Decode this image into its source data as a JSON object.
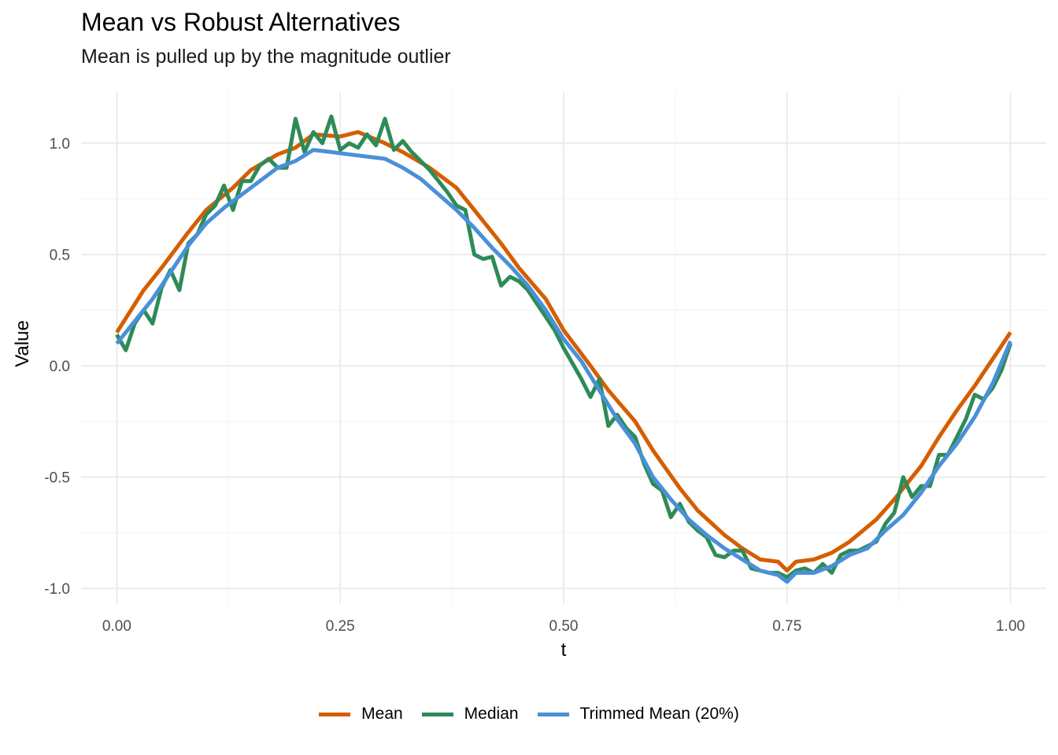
{
  "colors": {
    "mean": "#D55E00",
    "median": "#2E8B57",
    "trimmed": "#4A90D9",
    "grid_major": "#EBEBEB",
    "grid_minor": "#F5F5F5"
  },
  "chart_data": {
    "type": "line",
    "title": "Mean vs Robust Alternatives",
    "subtitle": "Mean is pulled up by the magnitude outlier",
    "xlabel": "t",
    "ylabel": "Value",
    "xlim": [
      -0.04,
      1.04
    ],
    "ylim": [
      -1.07,
      1.23
    ],
    "x_ticks": [
      0.0,
      0.25,
      0.5,
      0.75,
      1.0
    ],
    "x_tick_labels": [
      "0.00",
      "0.25",
      "0.50",
      "0.75",
      "1.00"
    ],
    "y_ticks": [
      -1.0,
      -0.5,
      0.0,
      0.5,
      1.0
    ],
    "y_tick_labels": [
      "-1.0",
      "-0.5",
      "0.0",
      "0.5",
      "1.0"
    ],
    "grid": true,
    "legend_position": "bottom",
    "series": [
      {
        "name": "Mean",
        "color_key": "mean",
        "x": [
          0.0,
          0.03,
          0.05,
          0.08,
          0.1,
          0.13,
          0.15,
          0.18,
          0.2,
          0.22,
          0.25,
          0.27,
          0.3,
          0.32,
          0.35,
          0.38,
          0.4,
          0.43,
          0.45,
          0.48,
          0.5,
          0.53,
          0.55,
          0.58,
          0.6,
          0.63,
          0.65,
          0.68,
          0.7,
          0.72,
          0.74,
          0.75,
          0.76,
          0.78,
          0.8,
          0.82,
          0.85,
          0.87,
          0.9,
          0.92,
          0.94,
          0.96,
          0.98,
          1.0
        ],
        "values": [
          0.15,
          0.34,
          0.44,
          0.6,
          0.7,
          0.8,
          0.88,
          0.95,
          0.98,
          1.04,
          1.03,
          1.05,
          1.0,
          0.96,
          0.89,
          0.8,
          0.7,
          0.55,
          0.44,
          0.3,
          0.16,
          0.0,
          -0.11,
          -0.25,
          -0.38,
          -0.55,
          -0.65,
          -0.76,
          -0.82,
          -0.87,
          -0.88,
          -0.92,
          -0.88,
          -0.87,
          -0.84,
          -0.79,
          -0.69,
          -0.6,
          -0.45,
          -0.32,
          -0.2,
          -0.09,
          0.03,
          0.15
        ]
      },
      {
        "name": "Median",
        "color_key": "median",
        "x": [
          0.0,
          0.01,
          0.02,
          0.03,
          0.04,
          0.05,
          0.06,
          0.07,
          0.08,
          0.09,
          0.1,
          0.11,
          0.12,
          0.13,
          0.14,
          0.15,
          0.16,
          0.17,
          0.18,
          0.19,
          0.2,
          0.21,
          0.22,
          0.23,
          0.24,
          0.25,
          0.26,
          0.27,
          0.28,
          0.29,
          0.3,
          0.31,
          0.32,
          0.33,
          0.34,
          0.35,
          0.36,
          0.37,
          0.38,
          0.39,
          0.4,
          0.41,
          0.42,
          0.43,
          0.44,
          0.45,
          0.46,
          0.47,
          0.48,
          0.49,
          0.5,
          0.51,
          0.52,
          0.53,
          0.54,
          0.55,
          0.56,
          0.57,
          0.58,
          0.59,
          0.6,
          0.61,
          0.62,
          0.63,
          0.64,
          0.65,
          0.66,
          0.67,
          0.68,
          0.69,
          0.7,
          0.71,
          0.72,
          0.73,
          0.74,
          0.75,
          0.76,
          0.77,
          0.78,
          0.79,
          0.8,
          0.81,
          0.82,
          0.83,
          0.84,
          0.85,
          0.86,
          0.87,
          0.88,
          0.89,
          0.9,
          0.91,
          0.92,
          0.93,
          0.94,
          0.95,
          0.96,
          0.97,
          0.98,
          0.99,
          1.0
        ],
        "values": [
          0.14,
          0.07,
          0.19,
          0.25,
          0.19,
          0.35,
          0.43,
          0.34,
          0.55,
          0.59,
          0.68,
          0.72,
          0.81,
          0.7,
          0.83,
          0.83,
          0.9,
          0.93,
          0.89,
          0.89,
          1.11,
          0.96,
          1.05,
          1.0,
          1.12,
          0.97,
          1.0,
          0.98,
          1.04,
          0.99,
          1.11,
          0.97,
          1.01,
          0.96,
          0.92,
          0.88,
          0.83,
          0.78,
          0.72,
          0.7,
          0.5,
          0.48,
          0.49,
          0.36,
          0.4,
          0.38,
          0.34,
          0.28,
          0.22,
          0.16,
          0.08,
          0.01,
          -0.06,
          -0.14,
          -0.06,
          -0.27,
          -0.22,
          -0.28,
          -0.32,
          -0.44,
          -0.53,
          -0.56,
          -0.68,
          -0.62,
          -0.7,
          -0.74,
          -0.77,
          -0.85,
          -0.86,
          -0.83,
          -0.83,
          -0.91,
          -0.92,
          -0.93,
          -0.93,
          -0.95,
          -0.92,
          -0.91,
          -0.93,
          -0.89,
          -0.93,
          -0.85,
          -0.83,
          -0.83,
          -0.81,
          -0.79,
          -0.71,
          -0.66,
          -0.5,
          -0.59,
          -0.54,
          -0.54,
          -0.4,
          -0.4,
          -0.32,
          -0.24,
          -0.13,
          -0.15,
          -0.1,
          -0.02,
          0.1
        ]
      },
      {
        "name": "Trimmed Mean (20%)",
        "color_key": "trimmed",
        "x": [
          0.0,
          0.02,
          0.04,
          0.06,
          0.08,
          0.1,
          0.12,
          0.14,
          0.16,
          0.18,
          0.2,
          0.22,
          0.24,
          0.26,
          0.28,
          0.3,
          0.32,
          0.34,
          0.36,
          0.38,
          0.4,
          0.42,
          0.44,
          0.46,
          0.48,
          0.5,
          0.52,
          0.54,
          0.56,
          0.58,
          0.6,
          0.62,
          0.64,
          0.66,
          0.68,
          0.7,
          0.72,
          0.74,
          0.75,
          0.76,
          0.78,
          0.8,
          0.82,
          0.84,
          0.86,
          0.88,
          0.9,
          0.92,
          0.94,
          0.96,
          0.98,
          1.0
        ],
        "values": [
          0.1,
          0.2,
          0.3,
          0.42,
          0.54,
          0.64,
          0.71,
          0.77,
          0.83,
          0.89,
          0.92,
          0.97,
          0.96,
          0.95,
          0.94,
          0.93,
          0.89,
          0.84,
          0.77,
          0.7,
          0.62,
          0.53,
          0.45,
          0.36,
          0.25,
          0.12,
          0.02,
          -0.11,
          -0.24,
          -0.35,
          -0.5,
          -0.6,
          -0.69,
          -0.76,
          -0.82,
          -0.87,
          -0.92,
          -0.94,
          -0.97,
          -0.93,
          -0.93,
          -0.9,
          -0.85,
          -0.82,
          -0.74,
          -0.67,
          -0.57,
          -0.45,
          -0.35,
          -0.23,
          -0.08,
          0.11
        ]
      }
    ]
  }
}
